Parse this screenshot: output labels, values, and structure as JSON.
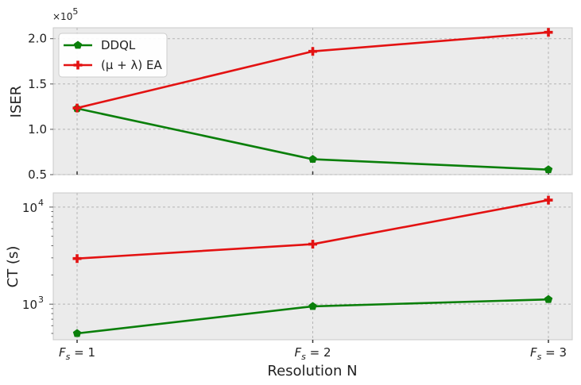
{
  "chart_data": [
    {
      "type": "line",
      "panel": "top",
      "ylabel": "ISER",
      "y_scale": "linear",
      "y_multiplier_label": {
        "base": "×10",
        "exponent": "5"
      },
      "ylim": [
        0.5,
        2.12
      ],
      "yticks": [
        0.5,
        1.0,
        1.5,
        2.0
      ],
      "ytick_labels": [
        "0.5",
        "1.0",
        "1.5",
        "2.0"
      ],
      "grid": true,
      "legend": {
        "position": "top-left",
        "entries": [
          {
            "label": "DDQL",
            "color": "#0a7f0a",
            "marker": "pentagon"
          },
          {
            "label": "(μ + λ) EA",
            "color": "#e31212",
            "marker": "plus"
          }
        ]
      },
      "x": [
        1,
        2,
        3
      ],
      "series": [
        {
          "name": "DDQL",
          "color": "#0a7f0a",
          "marker": "pentagon",
          "values": [
            1.23,
            0.67,
            0.555
          ]
        },
        {
          "name": "(μ + λ) EA",
          "color": "#e31212",
          "marker": "plus",
          "values": [
            1.235,
            1.86,
            2.07
          ]
        }
      ]
    },
    {
      "type": "line",
      "panel": "bottom",
      "ylabel": "CT (s)",
      "xlabel": "Resolution N",
      "y_scale": "log",
      "ylim": [
        430,
        14000
      ],
      "ytick_labels": [
        {
          "value": 1000,
          "base": "10",
          "exponent": "3"
        },
        {
          "value": 10000,
          "base": "10",
          "exponent": "4"
        }
      ],
      "x_ticks": [
        {
          "value": 1,
          "label": "Fs = 1",
          "symbol": "F",
          "sub": "s",
          "rest": " = 1"
        },
        {
          "value": 2,
          "label": "Fs = 2",
          "symbol": "F",
          "sub": "s",
          "rest": " = 2"
        },
        {
          "value": 3,
          "label": "Fs = 3",
          "symbol": "F",
          "sub": "s",
          "rest": " = 3"
        }
      ],
      "grid": true,
      "x": [
        1,
        2,
        3
      ],
      "series": [
        {
          "name": "DDQL",
          "color": "#0a7f0a",
          "marker": "pentagon",
          "values": [
            500,
            950,
            1120
          ]
        },
        {
          "name": "(μ + λ) EA",
          "color": "#e31212",
          "marker": "plus",
          "values": [
            2950,
            4150,
            11800
          ]
        }
      ]
    }
  ]
}
